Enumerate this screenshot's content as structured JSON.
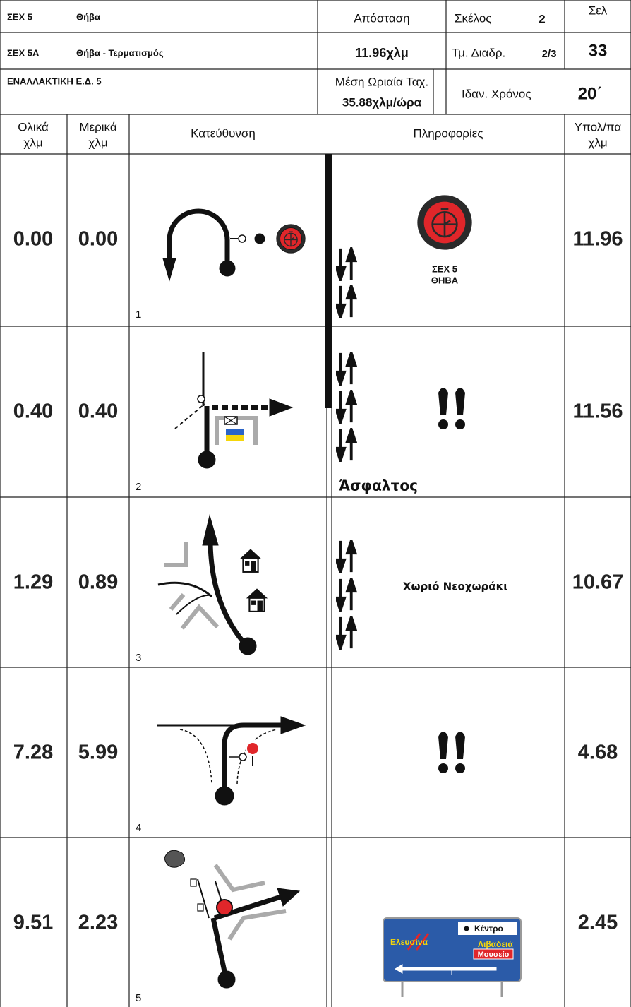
{
  "header": {
    "stage_code": "ΣΕΧ 5",
    "stage_name": "Θήβα",
    "section_code": "ΣΕΧ 5Α",
    "section_name": "Θήβα - Τερματισμός",
    "alternative": "ΕΝΑΛΛΑΚΤΙΚΗ Ε.Δ. 5",
    "distance_label": "Απόσταση",
    "distance": "11.96χλμ",
    "avg_speed_label": "Μέση Ωριαία Ταχ.",
    "avg_speed": "35.88χλμ/ώρα",
    "leg_label": "Σκέλος",
    "leg": "2",
    "segment_label": "Τμ. Διαδρ.",
    "segment": "2/3",
    "ideal_time_label": "Ιδαν. Χρόνος",
    "ideal_time": "20΄",
    "page_label": "Σελ",
    "page": "33"
  },
  "columns": [
    [
      "Ολικά",
      "χλμ"
    ],
    [
      "Μερικά",
      "χλμ"
    ],
    [
      "Κατεύθυνση"
    ],
    [
      "Πληροφορίες"
    ],
    [
      "Υπολ/πα",
      "χλμ"
    ]
  ],
  "rows": [
    {
      "index": "1",
      "total": "0.00",
      "partial": "0.00",
      "remaining": "11.96",
      "info": [
        "ΣΕΧ 5",
        "ΘΗΒΑ"
      ]
    },
    {
      "index": "2",
      "total": "0.40",
      "partial": "0.40",
      "remaining": "11.56",
      "info": [
        "Άσφαλτος"
      ]
    },
    {
      "index": "3",
      "total": "1.29",
      "partial": "0.89",
      "remaining": "10.67",
      "info": [
        "Χωριό Νεοχωράκι"
      ]
    },
    {
      "index": "4",
      "total": "7.28",
      "partial": "5.99",
      "remaining": "4.68"
    },
    {
      "index": "5",
      "total": "9.51",
      "partial": "2.23",
      "remaining": "2.45",
      "sign": [
        "Κέντρο",
        "Ελευσίνα",
        "Λιβαδειά",
        "Μουσείο"
      ]
    }
  ]
}
